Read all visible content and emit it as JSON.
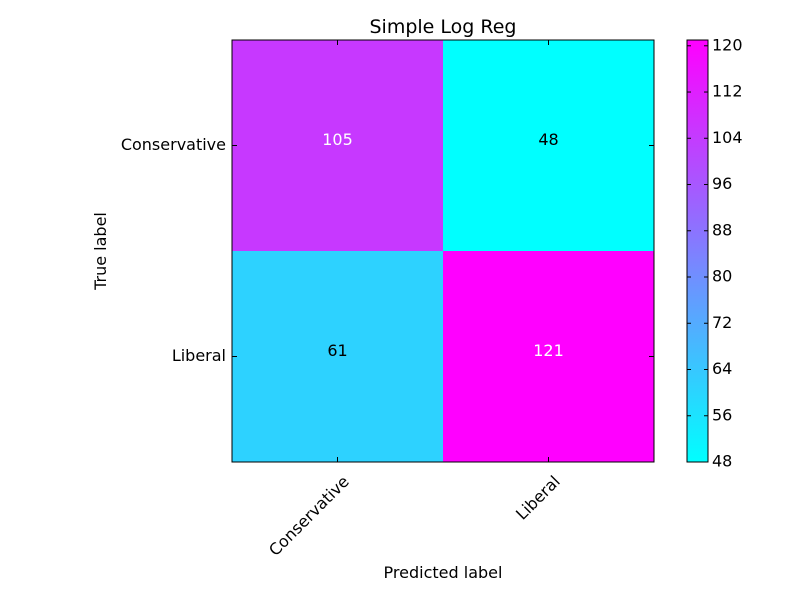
{
  "chart_data": {
    "type": "heatmap",
    "title": "Simple Log Reg",
    "xlabel": "Predicted label",
    "ylabel": "True label",
    "x_categories": [
      "Conservative",
      "Liberal"
    ],
    "y_categories": [
      "Conservative",
      "Liberal"
    ],
    "values": [
      [
        105,
        48
      ],
      [
        61,
        121
      ]
    ],
    "colormap": "cool",
    "color_min": "#00ffff",
    "color_max": "#ff00ff",
    "colorbar": {
      "min": 48,
      "max": 121,
      "ticks": [
        48,
        56,
        64,
        72,
        80,
        88,
        96,
        104,
        112,
        120
      ]
    },
    "grid": false
  }
}
